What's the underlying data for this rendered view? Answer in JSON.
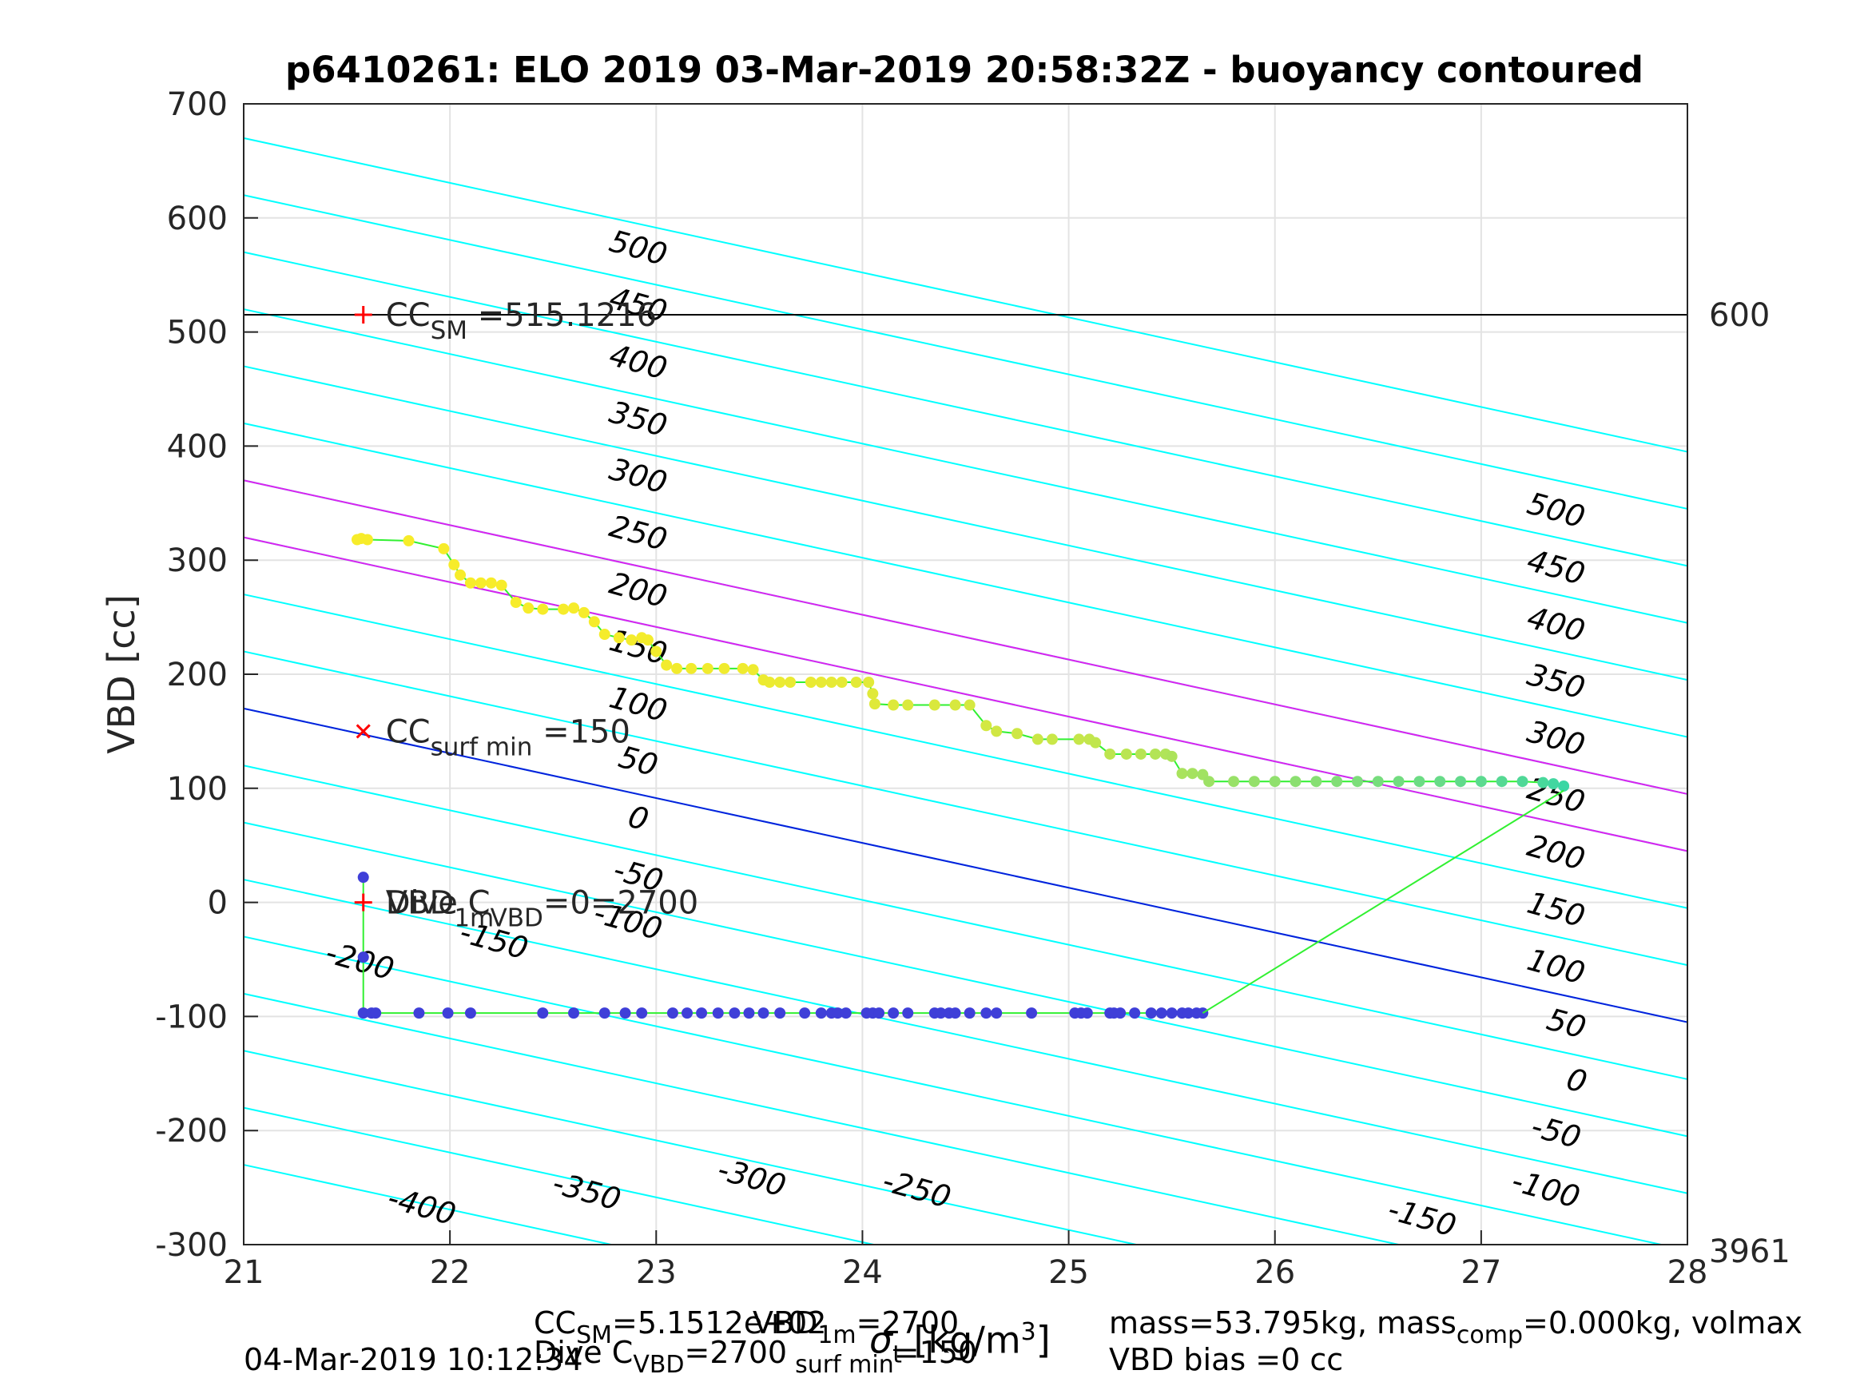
{
  "chart_data": {
    "type": "scatter",
    "title": "p6410261: ELO 2019 03-Mar-2019 20:58:32Z - buoyancy contoured",
    "ylabel": "VBD [cc]",
    "xlabel": "σ_t [kg/m³]",
    "xlabel_parts": {
      "symbol": "σ",
      "sub": "t",
      "unit": "[kg/m",
      "sup": "3",
      "close": "]"
    },
    "xlim": [
      21,
      28
    ],
    "ylim": [
      -300,
      700
    ],
    "x_ticks": [
      "21",
      "22",
      "23",
      "24",
      "25",
      "26",
      "27",
      "28"
    ],
    "y_ticks": [
      "-300",
      "-200",
      "-100",
      "0",
      "100",
      "200",
      "300",
      "400",
      "500",
      "600",
      "700"
    ],
    "grid": true,
    "right_annotations": [
      {
        "text": "600",
        "y": 515.1216
      },
      {
        "text": "3961",
        "y": -300
      }
    ],
    "reference_lines": [
      {
        "name": "CC_SM",
        "y": 515.1216,
        "color": "#000000"
      }
    ],
    "contours": {
      "cyan_levels": [
        -400,
        -350,
        -300,
        -250,
        -200,
        -150,
        -100,
        -50,
        0,
        50,
        100,
        150,
        200,
        250,
        300,
        350,
        400,
        450,
        500
      ],
      "magenta_levels": [
        250,
        200
      ],
      "blue_level": 0,
      "left_labels": [
        {
          "text": "500",
          "x": 22.9,
          "y": 565
        },
        {
          "text": "450",
          "x": 22.9,
          "y": 515
        },
        {
          "text": "400",
          "x": 22.9,
          "y": 465
        },
        {
          "text": "350",
          "x": 22.9,
          "y": 415
        },
        {
          "text": "300",
          "x": 22.9,
          "y": 365
        },
        {
          "text": "250",
          "x": 22.9,
          "y": 315
        },
        {
          "text": "200",
          "x": 22.9,
          "y": 265
        },
        {
          "text": "150",
          "x": 22.9,
          "y": 215
        },
        {
          "text": "100",
          "x": 22.9,
          "y": 165
        },
        {
          "text": "50",
          "x": 22.9,
          "y": 115
        },
        {
          "text": "0",
          "x": 22.9,
          "y": 65
        },
        {
          "text": "-50",
          "x": 22.9,
          "y": 15
        },
        {
          "text": "-100",
          "x": 22.85,
          "y": -25
        },
        {
          "text": "-150",
          "x": 22.2,
          "y": -42
        },
        {
          "text": "-200",
          "x": 21.55,
          "y": -60
        },
        {
          "text": "-250",
          "x": 24.25,
          "y": -260
        },
        {
          "text": "-300",
          "x": 23.45,
          "y": -250
        },
        {
          "text": "-350",
          "x": 22.65,
          "y": -262
        },
        {
          "text": "-400",
          "x": 21.85,
          "y": -275
        }
      ],
      "right_labels": [
        {
          "text": "500",
          "x": 27.35,
          "y": 335
        },
        {
          "text": "450",
          "x": 27.35,
          "y": 285
        },
        {
          "text": "400",
          "x": 27.35,
          "y": 235
        },
        {
          "text": "350",
          "x": 27.35,
          "y": 185
        },
        {
          "text": "300",
          "x": 27.35,
          "y": 135
        },
        {
          "text": "250",
          "x": 27.35,
          "y": 85
        },
        {
          "text": "200",
          "x": 27.35,
          "y": 35
        },
        {
          "text": "150",
          "x": 27.35,
          "y": -15
        },
        {
          "text": "100",
          "x": 27.35,
          "y": -65
        },
        {
          "text": "50",
          "x": 27.4,
          "y": -115
        },
        {
          "text": "0",
          "x": 27.45,
          "y": -165
        },
        {
          "text": "-50",
          "x": 27.35,
          "y": -210
        },
        {
          "text": "-100",
          "x": 27.3,
          "y": -260
        },
        {
          "text": "-150",
          "x": 26.7,
          "y": -285
        }
      ]
    },
    "series": [
      {
        "name": "Dive",
        "color": "#3f3fd8",
        "points": [
          [
            21.58,
            22
          ],
          [
            21.58,
            -48
          ],
          [
            21.58,
            -97
          ],
          [
            21.62,
            -97
          ],
          [
            21.64,
            -97
          ],
          [
            21.85,
            -97
          ],
          [
            21.99,
            -97
          ],
          [
            22.1,
            -97
          ],
          [
            22.45,
            -97
          ],
          [
            22.6,
            -97
          ],
          [
            22.75,
            -97
          ],
          [
            22.85,
            -97
          ],
          [
            22.93,
            -97
          ],
          [
            23.08,
            -97
          ],
          [
            23.15,
            -97
          ],
          [
            23.22,
            -97
          ],
          [
            23.3,
            -97
          ],
          [
            23.38,
            -97
          ],
          [
            23.45,
            -97
          ],
          [
            23.52,
            -97
          ],
          [
            23.6,
            -97
          ],
          [
            23.72,
            -97
          ],
          [
            23.8,
            -97
          ],
          [
            23.85,
            -97
          ],
          [
            23.88,
            -97
          ],
          [
            23.92,
            -97
          ],
          [
            24.02,
            -97
          ],
          [
            24.05,
            -97
          ],
          [
            24.08,
            -97
          ],
          [
            24.15,
            -97
          ],
          [
            24.22,
            -97
          ],
          [
            24.35,
            -97
          ],
          [
            24.38,
            -97
          ],
          [
            24.42,
            -97
          ],
          [
            24.45,
            -97
          ],
          [
            24.52,
            -97
          ],
          [
            24.6,
            -97
          ],
          [
            24.65,
            -97
          ],
          [
            24.82,
            -97
          ],
          [
            25.03,
            -97
          ],
          [
            25.06,
            -97
          ],
          [
            25.09,
            -97
          ],
          [
            25.2,
            -97
          ],
          [
            25.22,
            -97
          ],
          [
            25.25,
            -97
          ],
          [
            25.32,
            -97
          ],
          [
            25.4,
            -97
          ],
          [
            25.45,
            -97
          ],
          [
            25.5,
            -97
          ],
          [
            25.55,
            -97
          ],
          [
            25.58,
            -97
          ],
          [
            25.62,
            -97
          ],
          [
            25.65,
            -97
          ]
        ]
      },
      {
        "name": "Climb",
        "color_start": "#f7ec2a",
        "color_end": "#3bd6a4",
        "points": [
          [
            21.55,
            318
          ],
          [
            21.57,
            319
          ],
          [
            21.6,
            318
          ],
          [
            21.8,
            317
          ],
          [
            21.97,
            310
          ],
          [
            22.02,
            296
          ],
          [
            22.05,
            287
          ],
          [
            22.1,
            280
          ],
          [
            22.15,
            280
          ],
          [
            22.2,
            280
          ],
          [
            22.25,
            278
          ],
          [
            22.32,
            263
          ],
          [
            22.38,
            258
          ],
          [
            22.45,
            257
          ],
          [
            22.55,
            257
          ],
          [
            22.6,
            258
          ],
          [
            22.65,
            254
          ],
          [
            22.7,
            246
          ],
          [
            22.75,
            235
          ],
          [
            22.82,
            232
          ],
          [
            22.88,
            230
          ],
          [
            22.93,
            232
          ],
          [
            22.96,
            230
          ],
          [
            23.0,
            220
          ],
          [
            23.05,
            208
          ],
          [
            23.1,
            205
          ],
          [
            23.17,
            205
          ],
          [
            23.25,
            205
          ],
          [
            23.33,
            205
          ],
          [
            23.42,
            205
          ],
          [
            23.47,
            204
          ],
          [
            23.52,
            195
          ],
          [
            23.55,
            193
          ],
          [
            23.6,
            193
          ],
          [
            23.65,
            193
          ],
          [
            23.75,
            193
          ],
          [
            23.8,
            193
          ],
          [
            23.85,
            193
          ],
          [
            23.9,
            193
          ],
          [
            23.97,
            193
          ],
          [
            24.03,
            193
          ],
          [
            24.05,
            183
          ],
          [
            24.06,
            174
          ],
          [
            24.15,
            173
          ],
          [
            24.22,
            173
          ],
          [
            24.35,
            173
          ],
          [
            24.45,
            173
          ],
          [
            24.52,
            173
          ],
          [
            24.6,
            155
          ],
          [
            24.65,
            150
          ],
          [
            24.75,
            148
          ],
          [
            24.85,
            143
          ],
          [
            24.92,
            143
          ],
          [
            25.05,
            143
          ],
          [
            25.1,
            143
          ],
          [
            25.13,
            140
          ],
          [
            25.2,
            130
          ],
          [
            25.28,
            130
          ],
          [
            25.35,
            130
          ],
          [
            25.42,
            130
          ],
          [
            25.47,
            130
          ],
          [
            25.5,
            128
          ],
          [
            25.55,
            113
          ],
          [
            25.6,
            113
          ],
          [
            25.65,
            112
          ],
          [
            25.68,
            106
          ],
          [
            25.8,
            106
          ],
          [
            25.9,
            106
          ],
          [
            26.0,
            106
          ],
          [
            26.1,
            106
          ],
          [
            26.2,
            106
          ],
          [
            26.3,
            106
          ],
          [
            26.4,
            106
          ],
          [
            26.5,
            106
          ],
          [
            26.6,
            106
          ],
          [
            26.7,
            106
          ],
          [
            26.8,
            106
          ],
          [
            26.9,
            106
          ],
          [
            27.0,
            106
          ],
          [
            27.1,
            106
          ],
          [
            27.2,
            106
          ],
          [
            27.3,
            105
          ],
          [
            27.35,
            104
          ],
          [
            27.4,
            102
          ]
        ]
      },
      {
        "name": "Transition",
        "color": "#31f031",
        "points": [
          [
            25.65,
            -97
          ],
          [
            27.4,
            98
          ]
        ]
      }
    ],
    "markers": [
      {
        "symbol": "+",
        "color": "#ff0000",
        "x": 21.58,
        "y": 515.1216,
        "label": "CC",
        "label_sub": "SM",
        "label_value": "=515.1216"
      },
      {
        "symbol": "x",
        "color": "#ff0000",
        "x": 21.58,
        "y": 150,
        "label": "CC",
        "label_sub": "surf min",
        "label_value": "=150"
      },
      {
        "symbol": "+",
        "color": "#ff0000",
        "x": 21.58,
        "y": 0,
        "label": "VBD",
        "label_sub": "1m",
        "label_value": "",
        "label_overlay": "Dive C",
        "label_overlay_sub": "VBD",
        "label_overlay_value": "=0=2700"
      }
    ]
  },
  "footer": {
    "timestamp": "04-Mar-2019 10:12:34",
    "cc_sm": {
      "name": "CC",
      "sub": "SM",
      "value": "=5.1512e+02"
    },
    "vbd_1m": {
      "name": "VBD",
      "sub": "1m",
      "value": "=2700"
    },
    "dive_c": {
      "name": "Dive C",
      "sub": "VBD",
      "value": "=2700"
    },
    "cc_surf_min": {
      "name": "CC",
      "sub": "surf min",
      "value": "=150"
    },
    "mass_line": "mass=53.795kg, mass",
    "mass_sub": "comp",
    "mass_tail": "=0.000kg, volmax",
    "vbd_bias": "VBD bias =0 cc"
  }
}
